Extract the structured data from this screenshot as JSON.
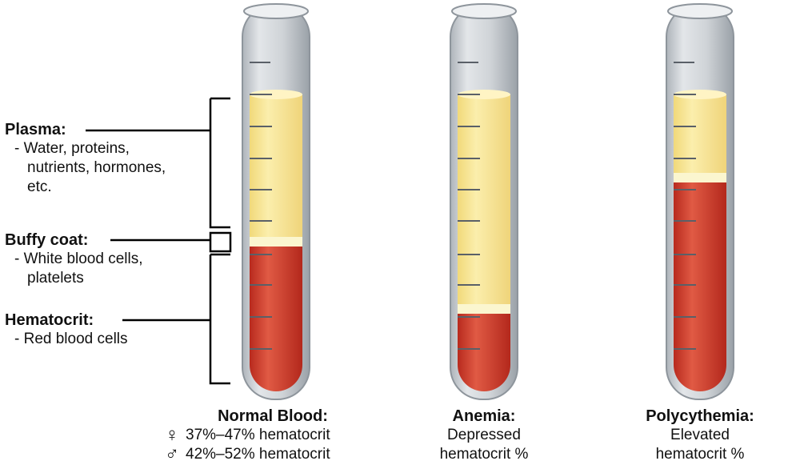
{
  "labels": {
    "plasma": {
      "title": "Plasma:",
      "desc_lines": [
        "- Water, proteins,",
        "nutrients, hormones,",
        "etc."
      ]
    },
    "buffy": {
      "title": "Buffy coat:",
      "desc_lines": [
        "- White blood cells,",
        "platelets"
      ]
    },
    "hematocrit": {
      "title": "Hematocrit:",
      "desc_lines": [
        "- Red blood cells"
      ]
    }
  },
  "tubes": [
    {
      "id": "normal",
      "caption_title": "Normal Blood:",
      "female_symbol": "♀",
      "female_range": "37%–47% hematocrit",
      "male_symbol": "♂",
      "male_range": "42%–52% hematocrit"
    },
    {
      "id": "anemia",
      "caption_title": "Anemia:",
      "caption_lines": [
        "Depressed",
        "hematocrit %"
      ]
    },
    {
      "id": "polycythemia",
      "caption_title": "Polycythemia:",
      "caption_lines": [
        "Elevated",
        "hematocrit %"
      ]
    }
  ],
  "colors": {
    "plasma": "#f7e79a",
    "buffy": "#fbf6cf",
    "blood": "#cf3a2b",
    "glass": "#c8cdd2",
    "line": "#000000"
  }
}
